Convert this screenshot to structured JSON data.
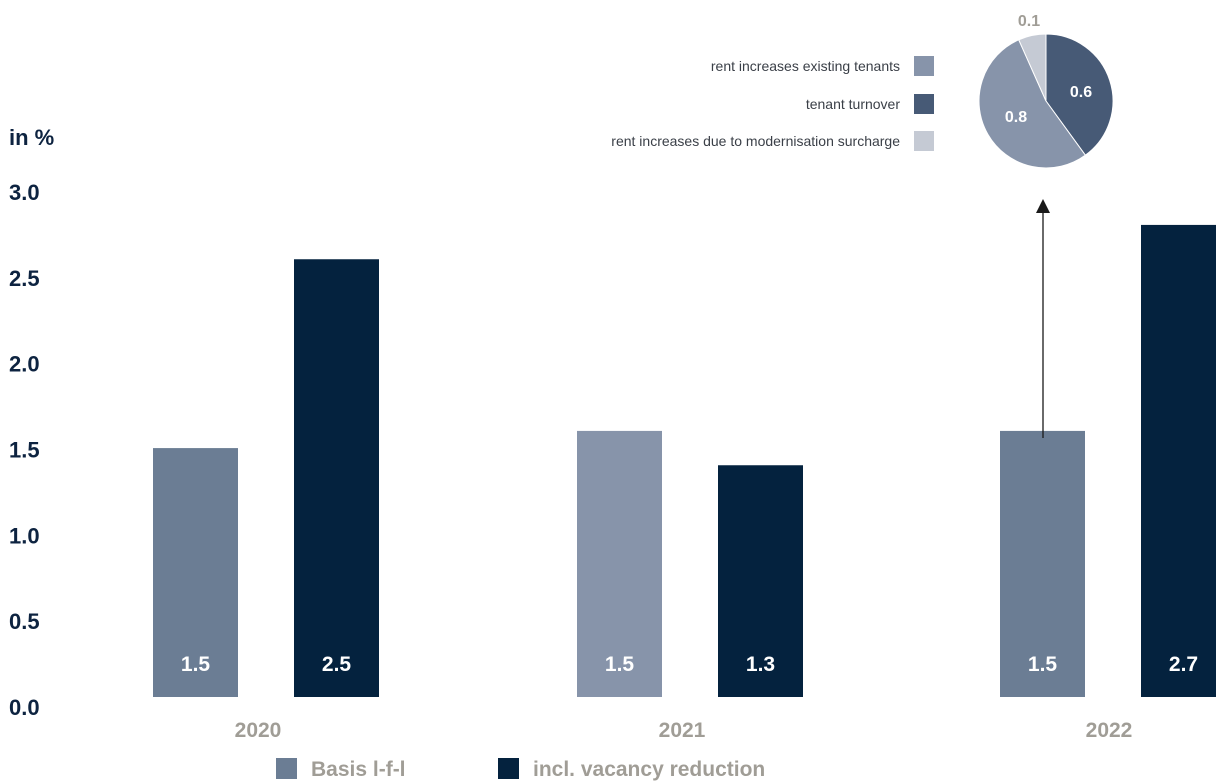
{
  "chart_data": {
    "type": "bar",
    "unit_label": "in %",
    "categories": [
      "2020",
      "2021",
      "2022"
    ],
    "yticks": [
      "0.0",
      "0.5",
      "1.0",
      "1.5",
      "2.0",
      "2.5",
      "3.0"
    ],
    "ylim": [
      0,
      3.0
    ],
    "series": [
      {
        "name": "Basis l-f-l",
        "values": [
          1.45,
          1.55,
          1.55
        ],
        "labels": [
          "1.5",
          "1.5",
          "1.5"
        ],
        "colors": [
          "#6b7d94",
          "#8794aa",
          "#6b7d94"
        ]
      },
      {
        "name": "incl. vacancy reduction",
        "values": [
          2.55,
          1.35,
          2.75
        ],
        "labels": [
          "2.5",
          "1.3",
          "2.7"
        ],
        "colors": [
          "#04223e",
          "#04223e",
          "#04223e"
        ]
      }
    ],
    "legend": [
      {
        "label": "Basis l-f-l",
        "color": "#6b7d94"
      },
      {
        "label": "incl. vacancy reduction",
        "color": "#04223e"
      }
    ],
    "breakdown": {
      "type": "pie",
      "of_category": "2022",
      "slices": [
        {
          "name": "rent increases existing tenants",
          "value": 0.8,
          "label": "0.8",
          "color": "#8794aa"
        },
        {
          "name": "tenant turnover",
          "value": 0.6,
          "label": "0.6",
          "color": "#475a76"
        },
        {
          "name": "rent increases due to modernisation surcharge",
          "value": 0.1,
          "label": "0.1",
          "color": "#c5cad4"
        }
      ]
    }
  }
}
